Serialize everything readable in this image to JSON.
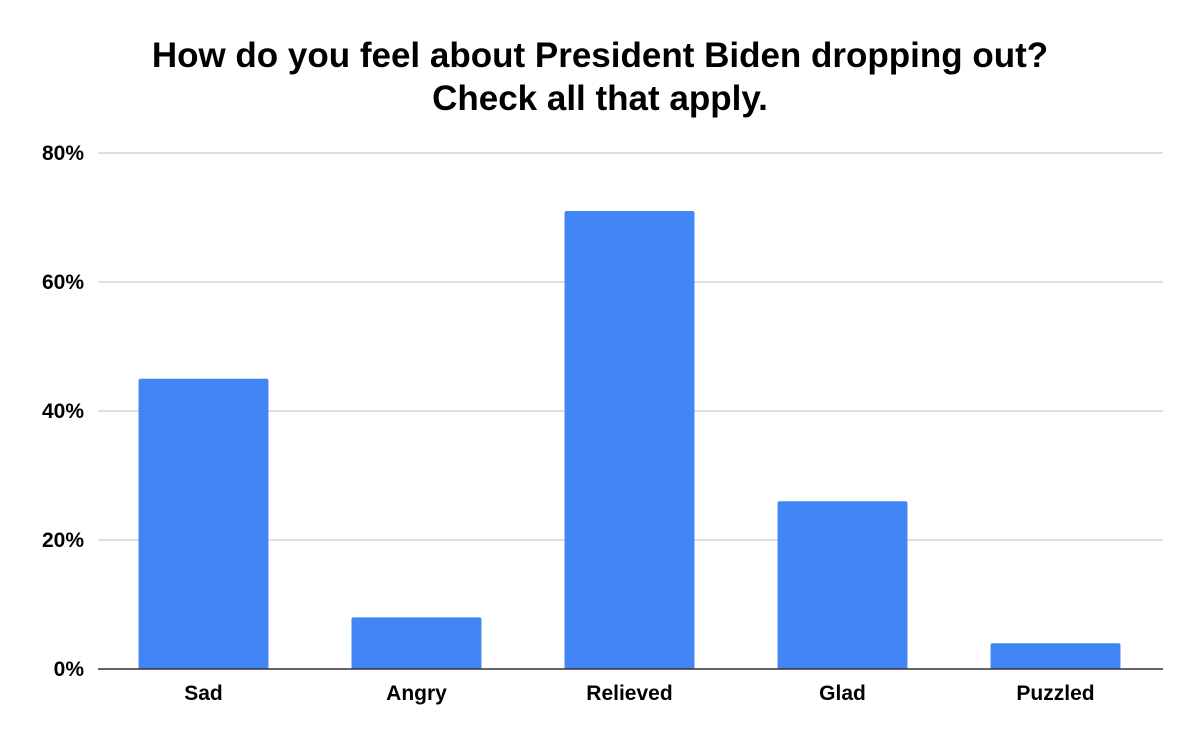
{
  "chart_data": {
    "type": "bar",
    "title": "How do you feel about President Biden dropping out?",
    "subtitle": "Check all that apply.",
    "xlabel": "",
    "ylabel": "",
    "categories": [
      "Sad",
      "Angry",
      "Relieved",
      "Glad",
      "Puzzled"
    ],
    "values": [
      45,
      8,
      71,
      26,
      4
    ],
    "ylim": [
      0,
      80
    ],
    "yticks": [
      0,
      20,
      40,
      60,
      80
    ],
    "ytick_labels": [
      "0%",
      "20%",
      "40%",
      "60%",
      "80%"
    ],
    "grid": true,
    "legend": "none",
    "bar_color": "#4285f4",
    "grid_color": "#cccccc",
    "axis_color": "#333333"
  }
}
